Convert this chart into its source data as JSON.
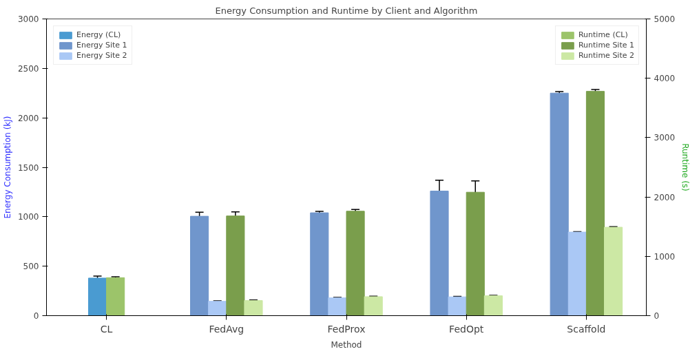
{
  "chart_data": {
    "type": "bar",
    "title": "Energy Consumption and Runtime by Client and Algorithm",
    "xlabel": "Method",
    "ylabel": "Energy Consumption (kJ)",
    "y2label": "Runtime (s)",
    "categories": [
      "CL",
      "FedAvg",
      "FedProx",
      "FedOpt",
      "Scaffold"
    ],
    "ylim": [
      0,
      3000
    ],
    "yticks": [
      0,
      500,
      1000,
      1500,
      2000,
      2500,
      3000
    ],
    "y2lim": [
      0,
      5000
    ],
    "y2ticks": [
      0,
      1000,
      2000,
      3000,
      4000,
      5000
    ],
    "grid": false,
    "legend": "top",
    "series": [
      {
        "name": "Energy (CL)",
        "color": "#4a9bd1",
        "values": [
          380,
          null,
          null,
          null,
          null
        ],
        "errors": [
          20,
          null,
          null,
          null,
          null
        ]
      },
      {
        "name": "Energy Site 1",
        "color": "#7096cc",
        "values": [
          null,
          1005,
          1040,
          1260,
          2250
        ],
        "errors": [
          null,
          40,
          15,
          110,
          15
        ]
      },
      {
        "name": "Energy Site 2",
        "color": "#aac8f5",
        "values": [
          null,
          145,
          180,
          190,
          845
        ],
        "errors": [
          null,
          5,
          5,
          5,
          5
        ]
      },
      {
        "name": "Runtime (CL)",
        "color": "#9cc46a",
        "axis": "y2",
        "values": [
          640,
          null,
          null,
          null,
          null
        ],
        "errors": [
          15,
          null,
          null,
          null,
          null
        ]
      },
      {
        "name": "Runtime Site 1",
        "color": "#7a9e4c",
        "axis": "y2",
        "values": [
          null,
          1680,
          1760,
          2080,
          3780
        ],
        "errors": [
          null,
          70,
          30,
          190,
          30
        ]
      },
      {
        "name": "Runtime Site 2",
        "color": "#cce8a4",
        "axis": "y2",
        "values": [
          null,
          255,
          320,
          335,
          1490
        ],
        "errors": [
          null,
          8,
          8,
          8,
          8
        ]
      }
    ]
  }
}
